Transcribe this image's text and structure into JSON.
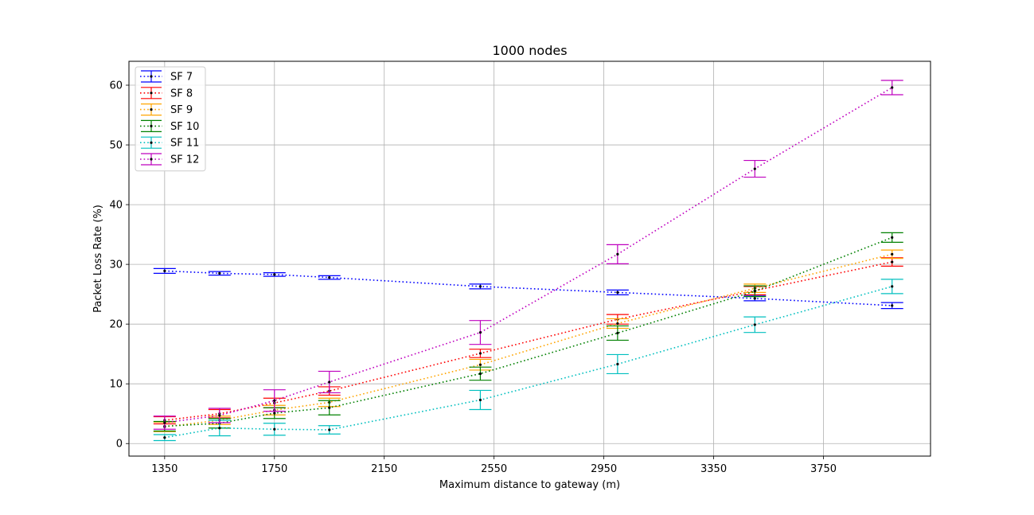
{
  "chart_data": {
    "type": "line",
    "title": "1000 nodes",
    "xlabel": "Maximum distance to gateway (m)",
    "ylabel": "Packet Loss Rate (%)",
    "xlim": [
      1220,
      4140
    ],
    "ylim": [
      -2.1,
      64
    ],
    "xticks": [
      1350,
      1750,
      2150,
      2550,
      2950,
      3350,
      3750
    ],
    "yticks": [
      0,
      10,
      20,
      30,
      40,
      50,
      60
    ],
    "grid": true,
    "legend_position": "top-left",
    "x": [
      1350,
      1550,
      1750,
      1950,
      2500,
      3000,
      3500,
      4000
    ],
    "series": [
      {
        "name": "SF 7",
        "color": "#0000ff",
        "values": [
          28.9,
          28.5,
          28.3,
          27.8,
          26.3,
          25.3,
          24.3,
          23.1
        ],
        "errors": [
          0.4,
          0.3,
          0.3,
          0.3,
          0.4,
          0.4,
          0.4,
          0.5
        ]
      },
      {
        "name": "SF 8",
        "color": "#ff0000",
        "values": [
          3.9,
          5.0,
          6.8,
          8.8,
          15.1,
          20.8,
          25.6,
          30.4
        ],
        "errors": [
          0.6,
          0.7,
          0.8,
          0.7,
          0.7,
          0.8,
          0.7,
          0.7
        ]
      },
      {
        "name": "SF 9",
        "color": "#ffa500",
        "values": [
          2.8,
          3.9,
          5.6,
          6.9,
          13.2,
          20.1,
          26.0,
          31.7
        ],
        "errors": [
          0.8,
          0.7,
          0.8,
          0.7,
          0.9,
          0.8,
          0.7,
          0.7
        ]
      },
      {
        "name": "SF 10",
        "color": "#008000",
        "values": [
          2.9,
          3.4,
          5.1,
          6.0,
          11.7,
          18.5,
          25.5,
          34.5
        ],
        "errors": [
          0.8,
          0.8,
          0.9,
          1.2,
          1.1,
          1.2,
          0.9,
          0.8
        ]
      },
      {
        "name": "SF 11",
        "color": "#00bfbf",
        "values": [
          1.0,
          2.6,
          2.4,
          2.3,
          7.3,
          13.3,
          19.9,
          26.3
        ],
        "errors": [
          0.5,
          1.3,
          1.0,
          0.7,
          1.6,
          1.6,
          1.3,
          1.2
        ]
      },
      {
        "name": "SF 12",
        "color": "#bf00bf",
        "values": [
          3.5,
          4.7,
          7.2,
          10.3,
          18.6,
          31.7,
          46.0,
          59.6
        ],
        "errors": [
          1.1,
          1.2,
          1.8,
          1.8,
          2.0,
          1.6,
          1.4,
          1.2
        ]
      }
    ]
  }
}
